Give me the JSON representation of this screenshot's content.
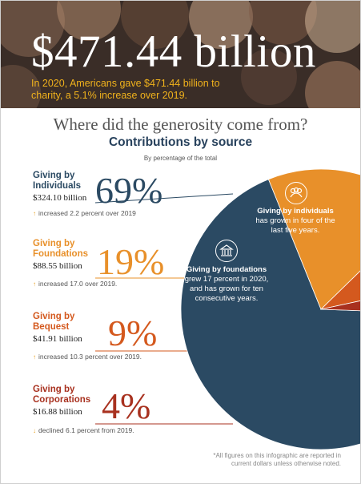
{
  "hero": {
    "title": "$471.44 billion",
    "subtitle": "In 2020, Americans gave $471.44 billion to charity, a 5.1% increase over 2019."
  },
  "headline": "Where did the generosity come from?",
  "subheadline": "Contributions by source",
  "note_top": "By percentage of the total",
  "sources": [
    {
      "label": "Giving by Individuals",
      "amount": "$324.10 billion",
      "pct": "69%",
      "change": "increased 2.2 percent over 2019",
      "direction": "up",
      "color": "#2b4a63"
    },
    {
      "label": "Giving by Foundations",
      "amount": "$88.55 billion",
      "pct": "19%",
      "change": "increased 17.0 over 2019.",
      "direction": "up",
      "color": "#e8902a"
    },
    {
      "label": "Giving by Bequest",
      "amount": "$41.91 billion",
      "pct": "9%",
      "change": "increased 10.3 percent over 2019.",
      "direction": "up",
      "color": "#d4591e"
    },
    {
      "label": "Giving by Corporations",
      "amount": "$16.88 billion",
      "pct": "4%",
      "change": "declined 6.1 percent from 2019.",
      "direction": "down",
      "color": "#a8311f"
    }
  ],
  "pie_labels": {
    "individuals_title": "Giving by individuals",
    "individuals_text": "has grown in four of the last five years.",
    "foundations_title": "Giving by foundations",
    "foundations_text": "grew 17 percent in 2020, and has grown for ten consecutive years."
  },
  "footnote": "*All figures on this infographic are reported in current dollars unless otherwise noted.",
  "chart_data": {
    "type": "pie",
    "title": "Contributions by source",
    "categories": [
      "Giving by Individuals",
      "Giving by Foundations",
      "Giving by Bequest",
      "Giving by Corporations"
    ],
    "values": [
      69,
      19,
      9,
      4
    ],
    "units": "percent of total",
    "amounts_billion": [
      324.1,
      88.55,
      41.91,
      16.88
    ],
    "colors": [
      "#2b4a63",
      "#e8902a",
      "#d4591e",
      "#a8311f"
    ]
  }
}
